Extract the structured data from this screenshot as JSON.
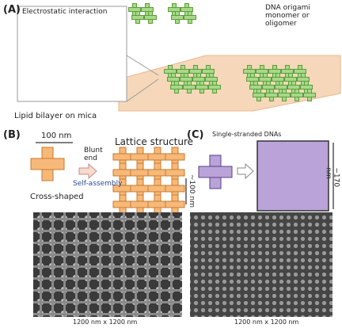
{
  "panel_a": {
    "label": "(A)",
    "inset_label": "Electrostatic interaction",
    "monomer_label": "DNA origami monomer or oligomer",
    "substrate_label": "Lipid bilayer on mica"
  },
  "panel_b": {
    "label": "(B)",
    "scale_label": "100 nm",
    "shape_label": "Cross-shaped",
    "end_label": "Blunt end",
    "process_label": "Self-assembly",
    "lattice_label": "Lattice structure",
    "lattice_size": "~100 nm"
  },
  "panel_c": {
    "label": "(C)",
    "strand_label": "Single-stranded DNAs",
    "lattice_size": "~170 nm"
  },
  "images": [
    {
      "caption": "1200 nm x 1200 nm"
    },
    {
      "caption": "1200 nm x 1200 nm"
    }
  ]
}
